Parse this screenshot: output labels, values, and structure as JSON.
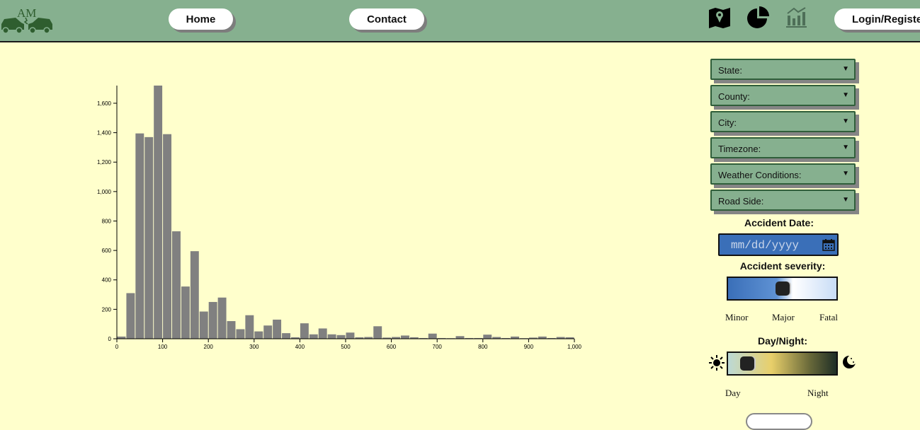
{
  "nav": {
    "home_label": "Home",
    "contact_label": "Contact",
    "login_label": "Login/Register",
    "icons": [
      "map-icon",
      "pie-chart-icon",
      "bar-chart-icon"
    ],
    "logo_text": "AM"
  },
  "filters": {
    "state": "State:",
    "county": "County:",
    "city": "City:",
    "timezone": "Timezone:",
    "weather": "Weather Conditions:",
    "road_side": "Road Side:"
  },
  "date": {
    "label": "Accident Date:",
    "placeholder": "mm/dd/yyyy"
  },
  "severity": {
    "label": "Accident severity:",
    "min": "Minor",
    "mid": "Major",
    "max": "Fatal",
    "value": 0.5
  },
  "day_night": {
    "label": "Day/Night:",
    "min": "Day",
    "max": "Night",
    "value": 0.1
  },
  "colors": {
    "navbar": "#86b08f",
    "background": "#ffffcc",
    "bars": "#808080",
    "select": "#86b08f"
  },
  "chart_data": {
    "type": "bar",
    "title": "",
    "xlabel": "",
    "ylabel": "",
    "xlim": [
      0,
      1000
    ],
    "ylim": [
      0,
      1720
    ],
    "bin_width": 20,
    "x_ticks": [
      "0",
      "100",
      "200",
      "300",
      "400",
      "500",
      "600",
      "700",
      "800",
      "900",
      "1,000"
    ],
    "y_ticks": [
      "0",
      "200",
      "400",
      "600",
      "800",
      "1,000",
      "1,200",
      "1,400",
      "1,600"
    ],
    "values": [
      15,
      310,
      1395,
      1370,
      1720,
      1390,
      730,
      355,
      595,
      185,
      250,
      280,
      120,
      65,
      160,
      50,
      90,
      130,
      38,
      10,
      105,
      30,
      70,
      30,
      25,
      42,
      10,
      12,
      85,
      8,
      12,
      22,
      10,
      5,
      35,
      5,
      4,
      18,
      5,
      5,
      28,
      12,
      5,
      15,
      4,
      8,
      15,
      5,
      12,
      10
    ]
  }
}
